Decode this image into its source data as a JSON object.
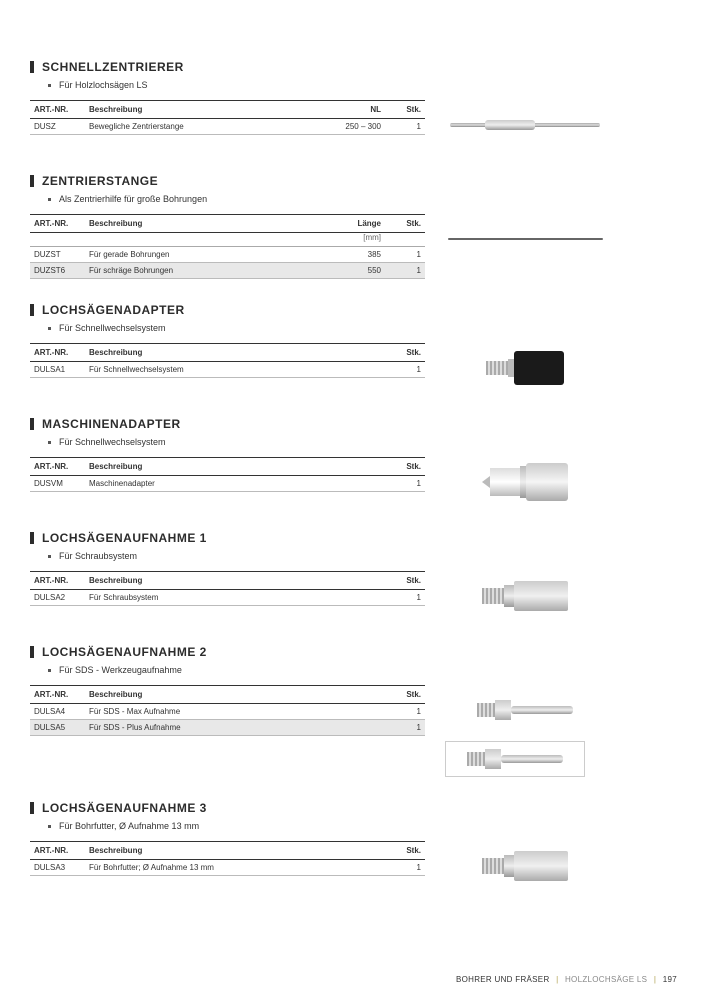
{
  "sections": [
    {
      "title": "SCHNELLZENTRIERER",
      "bullet": "Für Holzlochsägen LS",
      "columns": [
        {
          "key": "art",
          "label": "ART.-NR."
        },
        {
          "key": "desc",
          "label": "Beschreibung"
        },
        {
          "key": "nl",
          "label": "NL",
          "num": true
        },
        {
          "key": "stk",
          "label": "Stk.",
          "stk": true
        }
      ],
      "rows": [
        {
          "art": "DUSZ",
          "desc": "Bewegliche Zentrierstange",
          "nl": "250 – 300",
          "stk": "1"
        }
      ],
      "image": "rod"
    },
    {
      "title": "ZENTRIERSTANGE",
      "bullet": "Als Zentrierhilfe für große Bohrungen",
      "columns": [
        {
          "key": "art",
          "label": "ART.-NR."
        },
        {
          "key": "desc",
          "label": "Beschreibung"
        },
        {
          "key": "len",
          "label": "Länge",
          "num": true,
          "sub": "[mm]"
        },
        {
          "key": "stk",
          "label": "Stk.",
          "stk": true
        }
      ],
      "rows": [
        {
          "art": "DUZST",
          "desc": "Für gerade Bohrungen",
          "len": "385",
          "stk": "1"
        },
        {
          "art": "DUZST6",
          "desc": "Für schräge Bohrungen",
          "len": "550",
          "stk": "1",
          "shade": true
        }
      ],
      "image": "thinrod"
    },
    {
      "title": "LOCHSÄGENADAPTER",
      "bullet": "Für Schnellwechselsystem",
      "columns": [
        {
          "key": "art",
          "label": "ART.-NR."
        },
        {
          "key": "desc",
          "label": "Beschreibung"
        },
        {
          "key": "stk",
          "label": "Stk.",
          "stk": true
        }
      ],
      "rows": [
        {
          "art": "DULSA1",
          "desc": "Für Schnellwechselsystem",
          "stk": "1"
        }
      ],
      "image": "adapter1"
    },
    {
      "title": "MASCHINENADAPTER",
      "bullet": "Für Schnellwechselsystem",
      "columns": [
        {
          "key": "art",
          "label": "ART.-NR."
        },
        {
          "key": "desc",
          "label": "Beschreibung"
        },
        {
          "key": "stk",
          "label": "Stk.",
          "stk": true
        }
      ],
      "rows": [
        {
          "art": "DUSVM",
          "desc": "Maschinenadapter",
          "stk": "1"
        }
      ],
      "image": "adapter2"
    },
    {
      "title": "LOCHSÄGENAUFNAHME 1",
      "bullet": "Für Schraubsystem",
      "columns": [
        {
          "key": "art",
          "label": "ART.-NR."
        },
        {
          "key": "desc",
          "label": "Beschreibung"
        },
        {
          "key": "stk",
          "label": "Stk.",
          "stk": true
        }
      ],
      "rows": [
        {
          "art": "DULSA2",
          "desc": "Für Schraubsystem",
          "stk": "1"
        }
      ],
      "image": "holder"
    },
    {
      "title": "LOCHSÄGENAUFNAHME 2",
      "bullet": "Für SDS - Werkzeugaufnahme",
      "columns": [
        {
          "key": "art",
          "label": "ART.-NR."
        },
        {
          "key": "desc",
          "label": "Beschreibung"
        },
        {
          "key": "stk",
          "label": "Stk.",
          "stk": true
        }
      ],
      "rows": [
        {
          "art": "DULSA4",
          "desc": "Für SDS - Max Aufnahme",
          "stk": "1"
        },
        {
          "art": "DULSA5",
          "desc": "Für SDS - Plus Aufnahme",
          "stk": "1",
          "shade": true
        }
      ],
      "image": "sds-double"
    },
    {
      "title": "LOCHSÄGENAUFNAHME 3",
      "bullet": "Für Bohrfutter, Ø Aufnahme 13 mm",
      "columns": [
        {
          "key": "art",
          "label": "ART.-NR."
        },
        {
          "key": "desc",
          "label": "Beschreibung"
        },
        {
          "key": "stk",
          "label": "Stk.",
          "stk": true
        }
      ],
      "rows": [
        {
          "art": "DULSA3",
          "desc": "Für Bohrfutter; Ø Aufnahme 13 mm",
          "stk": "1"
        }
      ],
      "image": "holder"
    }
  ],
  "footer": {
    "cat": "BOHRER UND FRÄSER",
    "sub": "HOLZLOCHSÄGE LS",
    "page": "197"
  }
}
